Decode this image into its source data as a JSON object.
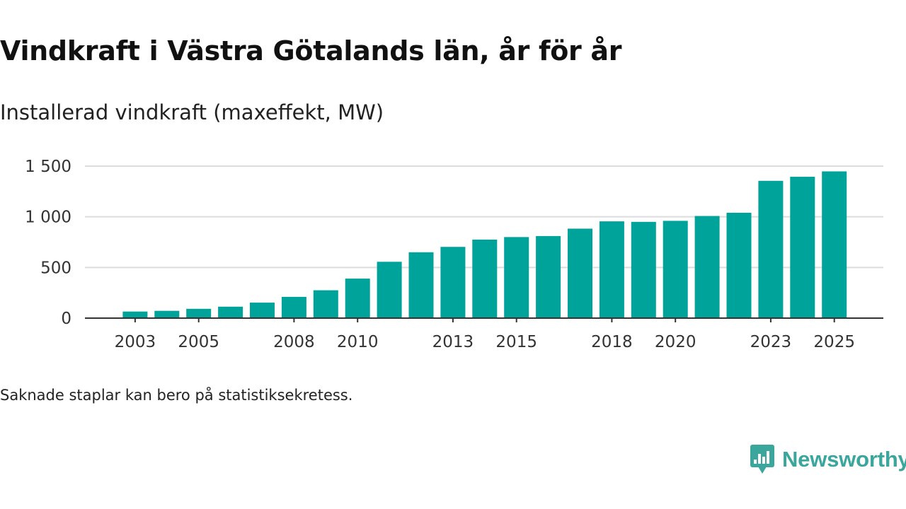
{
  "chart_data": {
    "type": "bar",
    "title": "Vindkraft i Västra Götalands län, år för år",
    "subtitle": "Installerad vindkraft (maxeffekt, MW)",
    "categories": [
      "2002",
      "2003",
      "2004",
      "2005",
      "2006",
      "2007",
      "2008",
      "2009",
      "2010",
      "2011",
      "2012",
      "2013",
      "2014",
      "2015",
      "2016",
      "2017",
      "2018",
      "2019",
      "2020",
      "2021",
      "2022",
      "2023",
      "2024",
      "2025"
    ],
    "x_tick_labels": [
      "2003",
      "2005",
      "2008",
      "2010",
      "2013",
      "2015",
      "2018",
      "2020",
      "2023",
      "2025"
    ],
    "values": [
      null,
      65,
      72,
      92,
      113,
      153,
      210,
      275,
      390,
      556,
      650,
      703,
      775,
      800,
      810,
      883,
      955,
      950,
      960,
      1008,
      1040,
      1355,
      1395,
      1448
    ],
    "y_ticks": [
      0,
      500,
      1000,
      1500
    ],
    "y_tick_labels": [
      "0",
      "500",
      "1 000",
      "1 500"
    ],
    "ylim": [
      0,
      1500
    ],
    "xlabel": "",
    "ylabel": "",
    "bar_color": "#00a39a",
    "grid": true
  },
  "footnote": "Saknade staplar kan bero på statistiksekretess.",
  "brand": {
    "name": "Newsworthy",
    "color": "#3aa69c"
  }
}
